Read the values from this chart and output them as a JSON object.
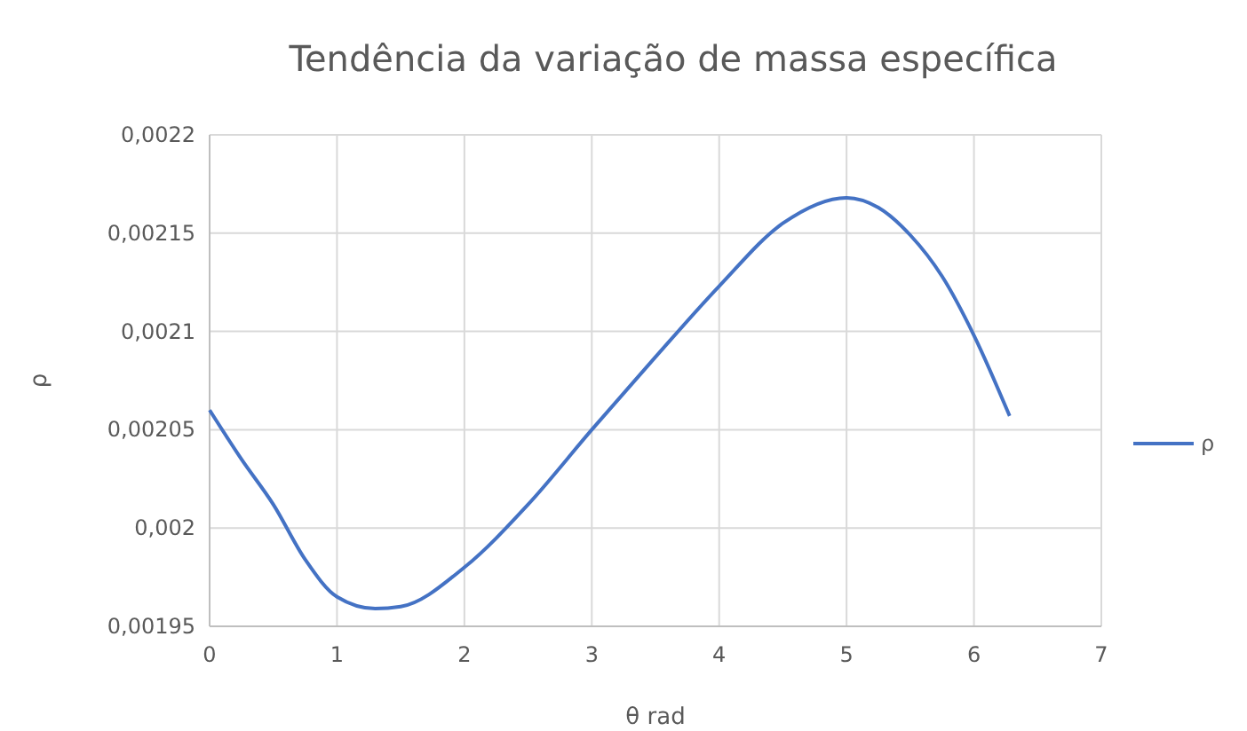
{
  "chart_data": {
    "type": "line",
    "title": "Tendência da variação de massa específica",
    "xlabel": "θ rad",
    "ylabel": "ρ",
    "x": [
      0,
      0.25,
      0.5,
      0.75,
      1,
      1.3,
      1.5,
      2,
      2.5,
      3,
      3.5,
      4,
      4.5,
      5,
      5.25,
      5.5,
      5.75,
      6,
      6.28
    ],
    "series": [
      {
        "name": "ρ",
        "color": "#4472c4",
        "values": [
          0.00206,
          0.002035,
          0.002012,
          0.001984,
          0.001965,
          0.001959,
          0.00196,
          0.00198,
          0.002012,
          0.00205,
          0.002087,
          0.002123,
          0.002155,
          0.002168,
          0.002163,
          0.002149,
          0.002128,
          0.002098,
          0.002057
        ]
      }
    ],
    "xlim": [
      0,
      7
    ],
    "xticks": [
      0,
      1,
      2,
      3,
      4,
      5,
      6,
      7
    ],
    "ylim": [
      0.00195,
      0.0022
    ],
    "yticks": [
      {
        "value": 0.00195,
        "label": "0,00195"
      },
      {
        "value": 0.002,
        "label": "0,002"
      },
      {
        "value": 0.00205,
        "label": "0,00205"
      },
      {
        "value": 0.0021,
        "label": "0,0021"
      },
      {
        "value": 0.00215,
        "label": "0,00215"
      },
      {
        "value": 0.0022,
        "label": "0,0022"
      }
    ],
    "grid": true,
    "legend": "right",
    "marker": "none",
    "line_style": "solid"
  }
}
